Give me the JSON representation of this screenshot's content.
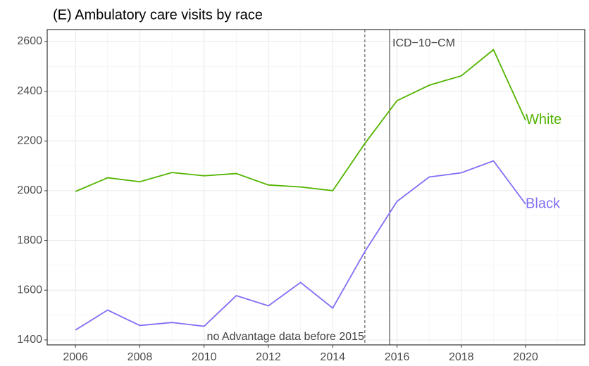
{
  "chart_data": {
    "type": "line",
    "title": "(E) Ambulatory care visits by race",
    "x": [
      2006,
      2007,
      2008,
      2009,
      2010,
      2011,
      2012,
      2013,
      2014,
      2015,
      2016,
      2017,
      2018,
      2019,
      2020
    ],
    "series": [
      {
        "name": "White",
        "color": "#53b400",
        "values": [
          1997,
          2052,
          2036,
          2073,
          2060,
          2069,
          2023,
          2015,
          2000,
          2190,
          2362,
          2424,
          2462,
          2567,
          2283
        ]
      },
      {
        "name": "Black",
        "color": "#7f6ff5",
        "values": [
          1440,
          1520,
          1458,
          1470,
          1455,
          1578,
          1537,
          1631,
          1528,
          1755,
          1957,
          2055,
          2072,
          2120,
          1946
        ]
      }
    ],
    "xlim": [
      2005.12,
      2021.84
    ],
    "ylim": [
      1380,
      2648
    ],
    "xticks": [
      2006,
      2008,
      2010,
      2012,
      2014,
      2016,
      2018,
      2020
    ],
    "yticks": [
      1400,
      1600,
      1800,
      2000,
      2200,
      2400,
      2600
    ],
    "grid": true,
    "vlines": [
      {
        "x": 2015,
        "dashed": true,
        "label": "no Advantage data before 2015"
      },
      {
        "x": 2015.77,
        "dashed": false,
        "label": "ICD−10−CM"
      }
    ]
  }
}
